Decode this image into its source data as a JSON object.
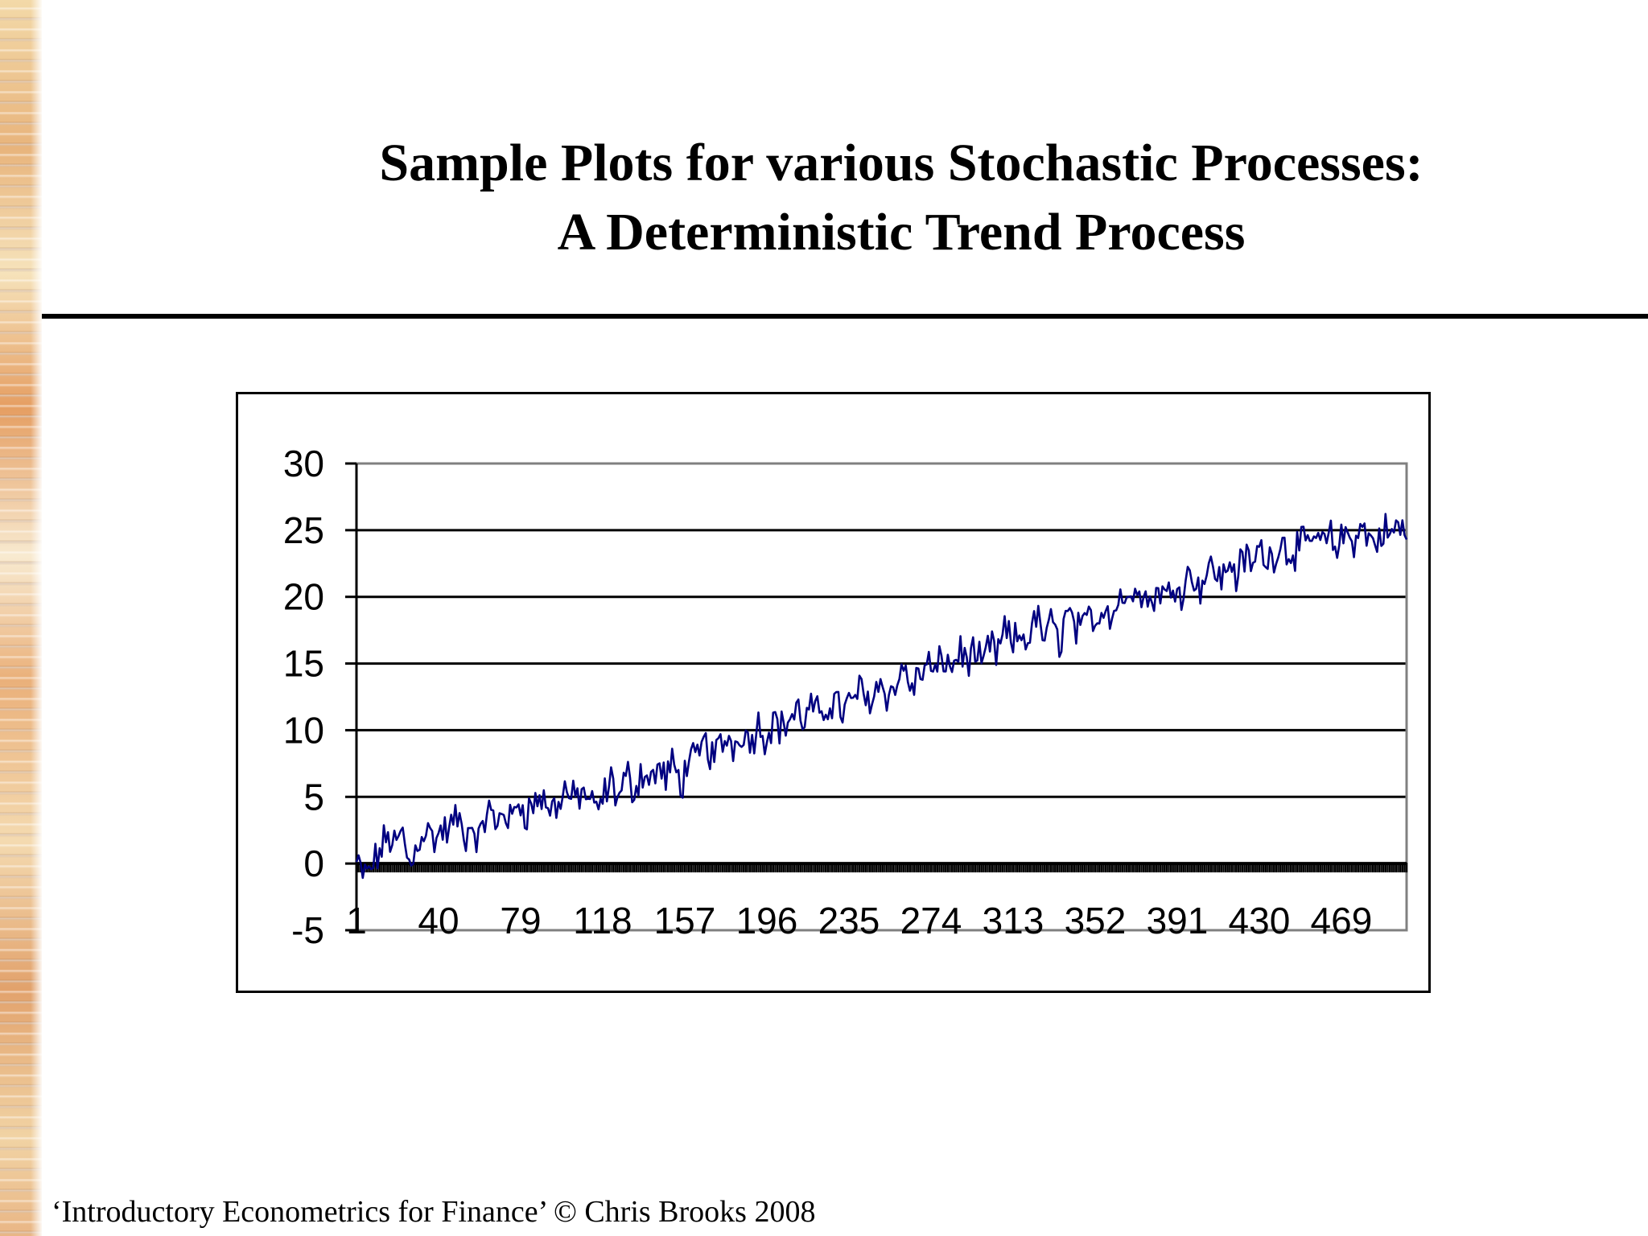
{
  "slide": {
    "title_line1": "Sample Plots for various Stochastic Processes:",
    "title_line2": "A Deterministic Trend Process",
    "footer": "‘Introductory Econometrics for Finance’ © Chris Brooks 2008"
  },
  "colors": {
    "series": "#000080",
    "gridline": "#000000",
    "plot_border": "#808080"
  },
  "chart_data": {
    "type": "line",
    "title": "",
    "xlabel": "",
    "ylabel": "",
    "ylim": [
      -5,
      30
    ],
    "yticks": [
      30,
      25,
      20,
      15,
      10,
      5,
      0,
      -5
    ],
    "xtick_labels": [
      "1",
      "40",
      "79",
      "118",
      "157",
      "196",
      "235",
      "274",
      "313",
      "352",
      "391",
      "430",
      "469"
    ],
    "x_start": 1,
    "x_end": 500,
    "grid": true,
    "legend": "none",
    "trend": {
      "intercept": 0,
      "slope_per_step": 0.05
    },
    "series": [
      {
        "values": [
          0.0,
          -1.0,
          -0.2,
          0.8,
          2.1,
          1.4,
          2.2,
          -0.5,
          1.9,
          2.6,
          1.8,
          2.4,
          2.5,
          3.5,
          2.0,
          2.9,
          1.5,
          4.5,
          2.6,
          4.2,
          3.0,
          4.8,
          3.8,
          4.5,
          5.0,
          4.0,
          4.4,
          5.6,
          4.7,
          5.3,
          5.1,
          3.7,
          5.0,
          6.2,
          4.8,
          6.7,
          5.5,
          7.0,
          6.1,
          7.2,
          6.4,
          7.5,
          5.8,
          8.0,
          7.4,
          9.2,
          8.1,
          8.6,
          9.5,
          8.8,
          10.2,
          9.0,
          10.5,
          9.4,
          11.0,
          10.1,
          10.8,
          11.5,
          10.6,
          11.9,
          10.7,
          11.8,
          12.5,
          11.3,
          12.0,
          13.2,
          12.2,
          12.8,
          13.8,
          12.4,
          13.5,
          14.8,
          13.0,
          14.2,
          15.0,
          14.1,
          15.6,
          14.5,
          16.0,
          15.2,
          15.8,
          14.6,
          16.5,
          15.6,
          17.5,
          16.4,
          17.2,
          16.8,
          18.5,
          17.0,
          18.0,
          16.5,
          19.0,
          17.8,
          17.2,
          18.8,
          18.2,
          19.6,
          18.5,
          20.5,
          19.2,
          21.5,
          20.0,
          19.5,
          20.8,
          19.8,
          21.2,
          20.5,
          22.0,
          20.8,
          21.5,
          22.5,
          21.0,
          22.8,
          21.6,
          23.0,
          22.2,
          23.8,
          22.6,
          23.5,
          24.2,
          23.0,
          24.0,
          23.5,
          24.8,
          23.8,
          24.5,
          23.6,
          24.8,
          24.2,
          25.2,
          24.5,
          24.0,
          25.0,
          24.6,
          25.4,
          24.5
        ]
      }
    ]
  }
}
